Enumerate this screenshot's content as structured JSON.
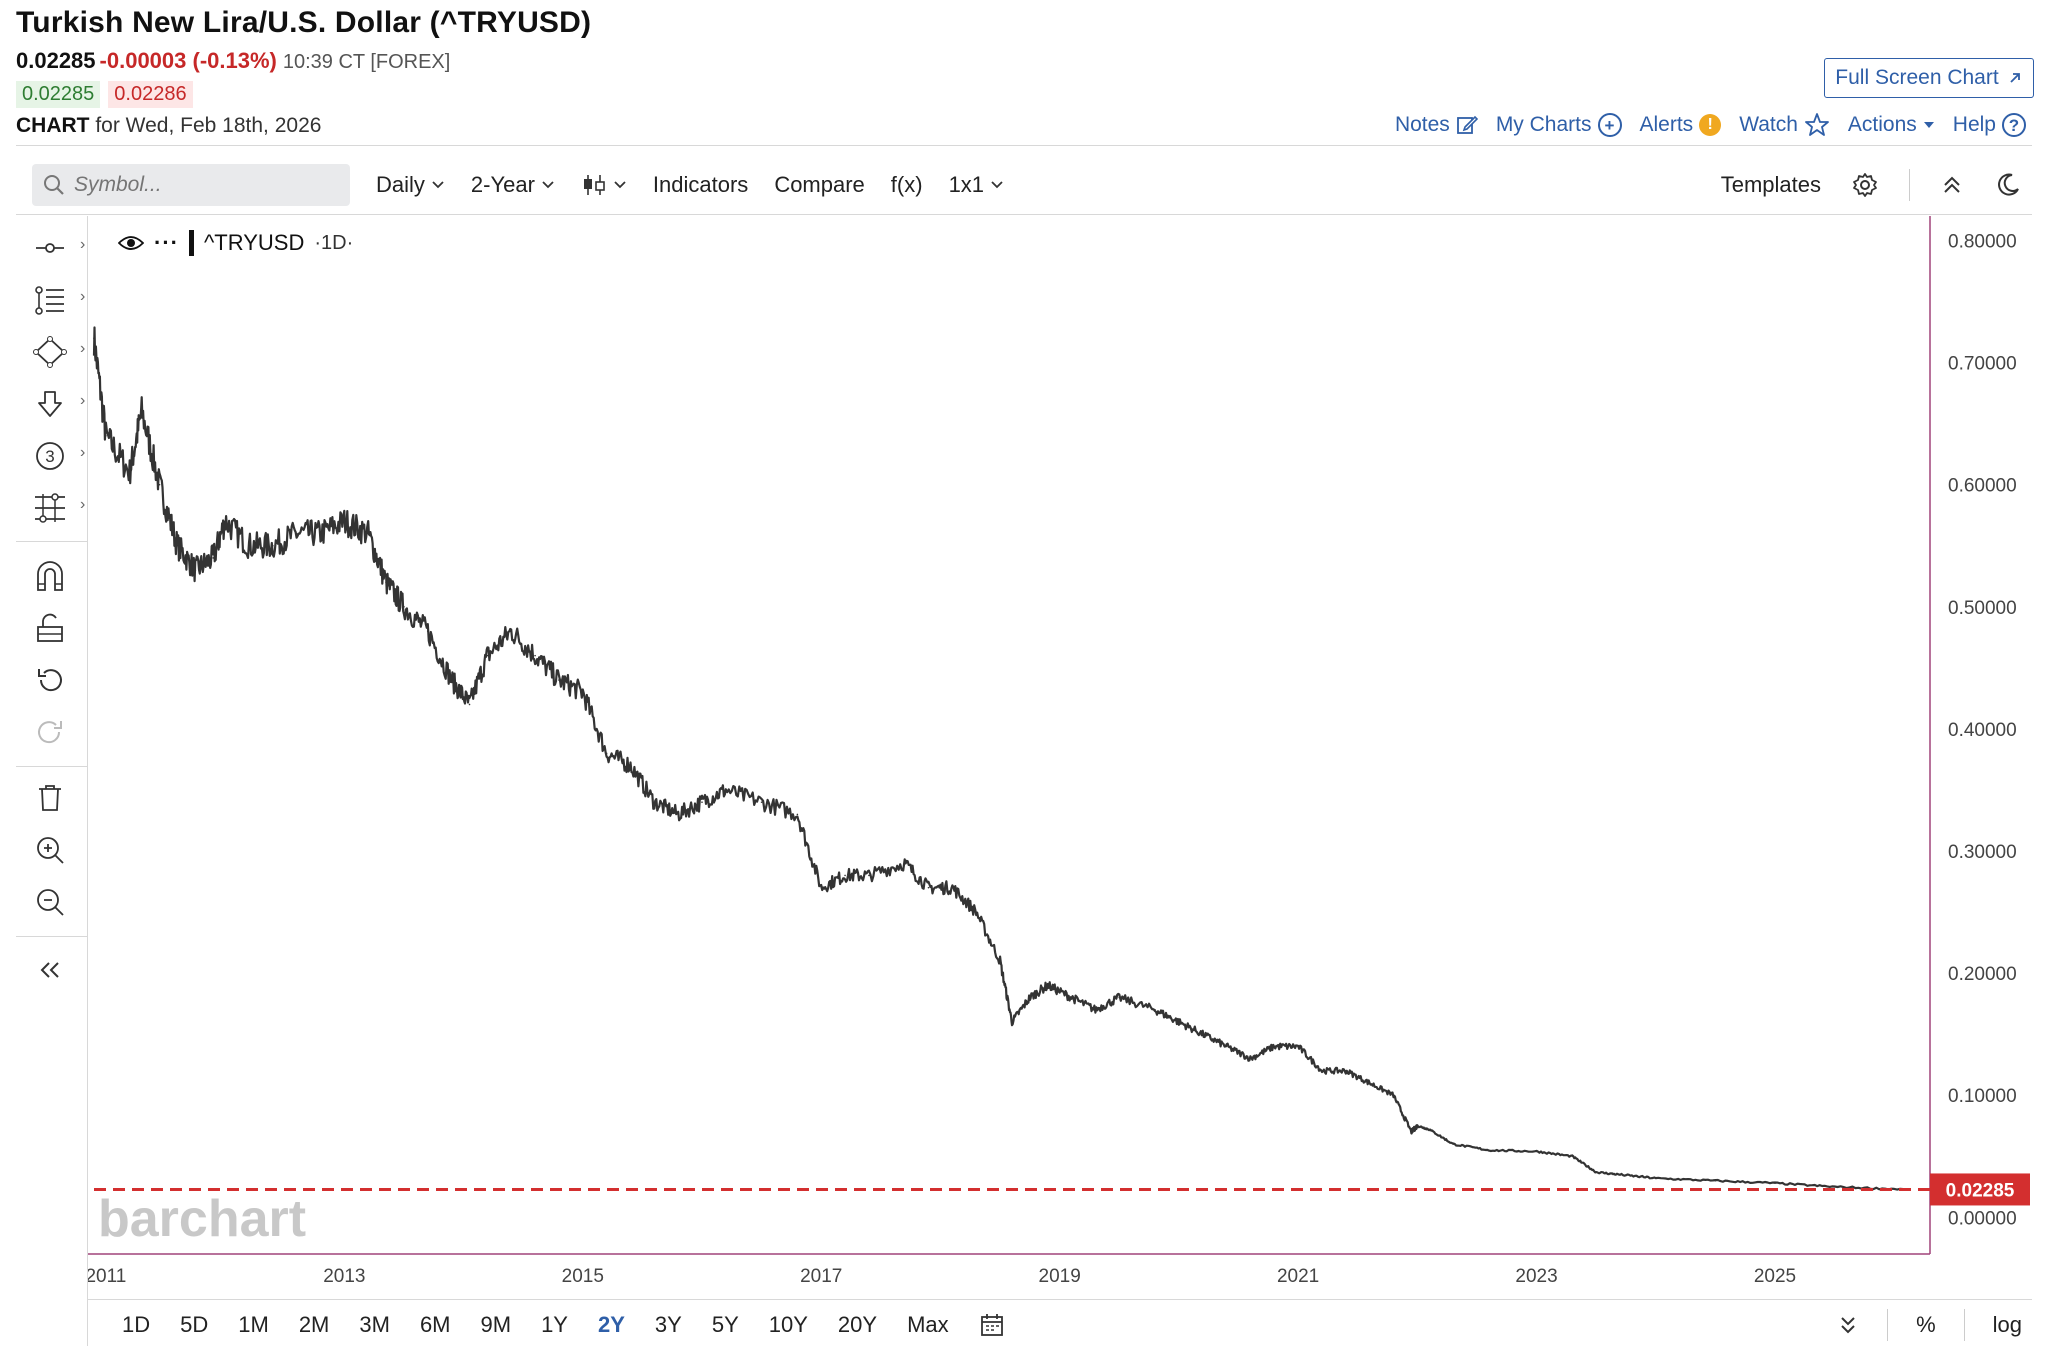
{
  "header": {
    "title": "Turkish New Lira/U.S. Dollar (^TRYUSD)",
    "last": "0.02285",
    "change": "-0.00003 (-0.13%)",
    "time": "10:39 CT [FOREX]",
    "bid": "0.02285",
    "ask": "0.02286",
    "chart_label": "CHART",
    "chart_date": "for Wed, Feb 18th, 2026",
    "full_screen": "Full Screen Chart",
    "links": {
      "notes": "Notes",
      "my_charts": "My Charts",
      "alerts": "Alerts",
      "watch": "Watch",
      "actions": "Actions",
      "help": "Help"
    }
  },
  "toolbar": {
    "search_placeholder": "Symbol...",
    "interval": "Daily",
    "range": "2-Year",
    "indicators": "Indicators",
    "compare": "Compare",
    "fx": "f(x)",
    "layout": "1x1",
    "templates": "Templates"
  },
  "legend": {
    "symbol": "^TRYUSD",
    "timeframe": "·1D·"
  },
  "watermark": "barchart",
  "price_tag": "0.02285",
  "bottombar": {
    "periods": [
      "1D",
      "5D",
      "1M",
      "2M",
      "3M",
      "6M",
      "9M",
      "1Y",
      "2Y",
      "3Y",
      "5Y",
      "10Y",
      "20Y",
      "Max"
    ],
    "active_period": "2Y",
    "percent": "%",
    "log": "log"
  },
  "chart_data": {
    "type": "line",
    "ylim": [
      -0.03,
      0.82
    ],
    "y_ticks": [
      "0.80000",
      "0.70000",
      "0.60000",
      "0.50000",
      "0.40000",
      "0.30000",
      "0.20000",
      "0.10000",
      "0.00000"
    ],
    "x_ticks": [
      "2011",
      "2013",
      "2015",
      "2017",
      "2019",
      "2021",
      "2023",
      "2025"
    ],
    "x": [
      2010.9,
      2011.0,
      2011.2,
      2011.3,
      2011.45,
      2011.6,
      2011.75,
      2011.9,
      2012.0,
      2012.2,
      2012.4,
      2012.6,
      2012.8,
      2013.0,
      2013.2,
      2013.35,
      2013.5,
      2013.7,
      2013.9,
      2014.05,
      2014.2,
      2014.4,
      2014.6,
      2014.8,
      2015.0,
      2015.2,
      2015.4,
      2015.6,
      2015.8,
      2016.0,
      2016.2,
      2016.5,
      2016.8,
      2017.0,
      2017.2,
      2017.4,
      2017.7,
      2017.9,
      2018.1,
      2018.3,
      2018.5,
      2018.6,
      2018.75,
      2018.9,
      2019.1,
      2019.3,
      2019.5,
      2019.8,
      2020.0,
      2020.2,
      2020.4,
      2020.6,
      2020.8,
      2021.0,
      2021.2,
      2021.4,
      2021.6,
      2021.8,
      2021.95,
      2022.0,
      2022.1,
      2022.3,
      2022.6,
      2023.0,
      2023.3,
      2023.5,
      2023.7,
      2024.0,
      2024.5,
      2025.0,
      2025.5,
      2026.1
    ],
    "y": [
      0.72,
      0.64,
      0.61,
      0.66,
      0.6,
      0.55,
      0.53,
      0.54,
      0.57,
      0.55,
      0.55,
      0.56,
      0.56,
      0.57,
      0.56,
      0.52,
      0.5,
      0.48,
      0.44,
      0.42,
      0.46,
      0.48,
      0.46,
      0.44,
      0.43,
      0.38,
      0.37,
      0.34,
      0.33,
      0.34,
      0.35,
      0.34,
      0.33,
      0.27,
      0.28,
      0.28,
      0.29,
      0.27,
      0.27,
      0.25,
      0.21,
      0.16,
      0.18,
      0.19,
      0.18,
      0.17,
      0.18,
      0.17,
      0.16,
      0.15,
      0.14,
      0.13,
      0.14,
      0.14,
      0.12,
      0.12,
      0.11,
      0.1,
      0.07,
      0.075,
      0.072,
      0.06,
      0.055,
      0.054,
      0.05,
      0.037,
      0.035,
      0.032,
      0.03,
      0.028,
      0.025,
      0.0229
    ],
    "last_price": 0.02285
  }
}
